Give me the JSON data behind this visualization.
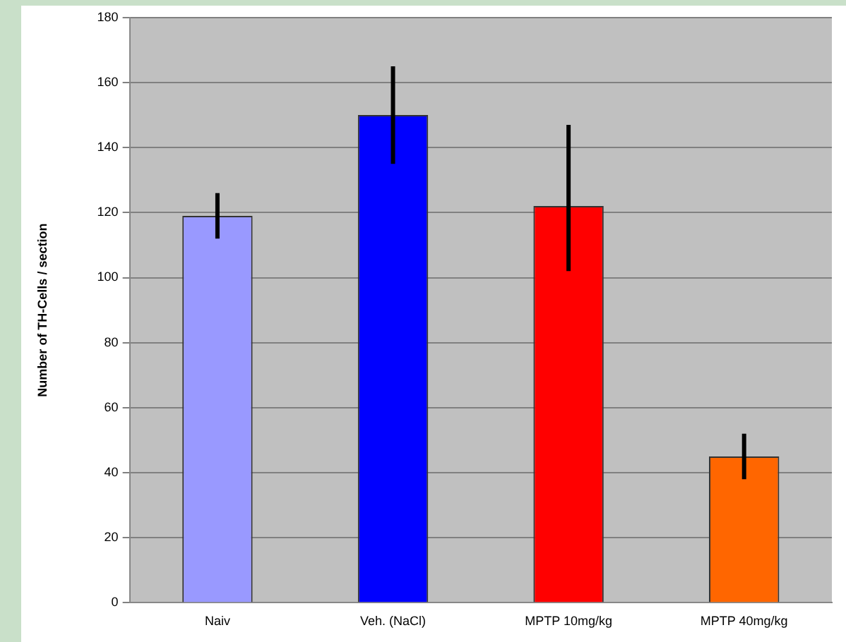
{
  "chart_data": {
    "type": "bar",
    "ylabel": "Number of TH-Cells / section",
    "categories": [
      "Naiv",
      "Veh. (NaCl)",
      "MPTP 10mg/kg",
      "MPTP 40mg/kg"
    ],
    "values": [
      119,
      150,
      122,
      45
    ],
    "colors": [
      "#9999ff",
      "#0000ff",
      "#ff0000",
      "#ff6600"
    ],
    "errors": [
      7,
      15,
      [
        102,
        147
      ],
      7
    ],
    "ylim": [
      0,
      180
    ],
    "yticks": [
      0,
      20,
      40,
      60,
      80,
      100,
      120,
      140,
      160,
      180
    ],
    "grid": "y",
    "legend": false
  }
}
